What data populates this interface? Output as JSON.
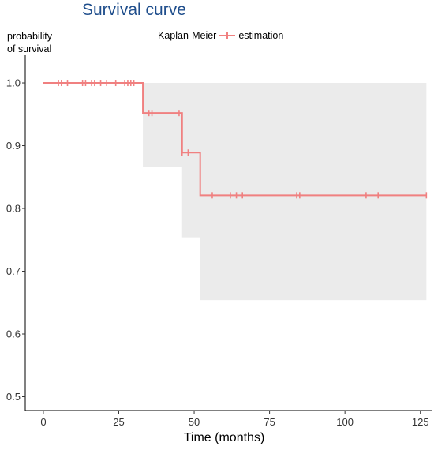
{
  "chart_data": {
    "type": "line",
    "title": "Survival curve",
    "ylabel_lines": [
      "probability",
      "of survival"
    ],
    "xlabel": "Time (months)",
    "legend_title": "Kaplan-Meier",
    "series": [
      {
        "name": "estimation",
        "color": "#f08080",
        "step_x": [
          0,
          33,
          46,
          52,
          127
        ],
        "step_y": [
          1.0,
          0.952,
          0.889,
          0.821,
          0.821
        ],
        "ci_x": [
          33,
          46,
          52,
          127
        ],
        "ci_lower": [
          0.866,
          0.754,
          0.654,
          0.654
        ],
        "ci_upper": [
          1.0,
          1.0,
          1.0,
          1.0
        ],
        "censor_x": [
          5,
          6,
          8,
          13,
          14,
          16,
          17,
          19,
          21,
          24,
          27,
          28,
          29,
          30,
          35,
          36,
          45,
          46,
          48,
          56,
          62,
          64,
          66,
          84,
          85,
          107,
          111,
          127
        ]
      }
    ],
    "xlim": [
      -6,
      129
    ],
    "ylim": [
      0.478,
      1.034
    ],
    "xticks": [
      0,
      25,
      50,
      75,
      100,
      125
    ],
    "yticks": [
      0.5,
      0.6,
      0.7,
      0.8,
      0.9,
      1.0
    ],
    "ytick_labels": [
      "0.5",
      "0.6",
      "0.7",
      "0.8",
      "0.9",
      "1.0"
    ],
    "grid": false,
    "legend_position": "top"
  }
}
